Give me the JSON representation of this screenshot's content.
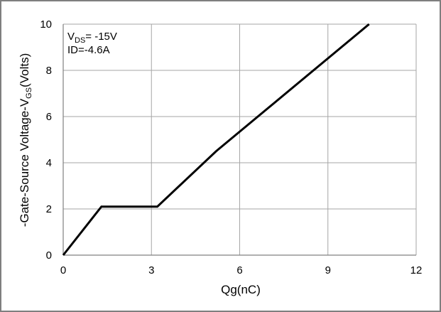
{
  "chart_data": {
    "type": "line",
    "xlabel": "Qg(nC)",
    "ylabel": {
      "main": "-Gate-Source Voltage-V",
      "sub": "GS",
      "tail": "(Volts)"
    },
    "xlim": [
      0,
      12
    ],
    "ylim": [
      0,
      10
    ],
    "x_ticks": [
      0,
      3,
      6,
      9,
      12
    ],
    "y_ticks": [
      0,
      2,
      4,
      6,
      8,
      10
    ],
    "grid": true,
    "annotations": [
      {
        "main": "V",
        "sub": "DS",
        "tail": "= -15V"
      },
      {
        "main": "ID=-4.6A",
        "sub": "",
        "tail": ""
      }
    ],
    "series": [
      {
        "color": "#000000",
        "x": [
          0,
          1.3,
          3.2,
          5.2,
          10.4
        ],
        "y": [
          0,
          2.1,
          2.1,
          4.5,
          10
        ]
      }
    ]
  }
}
